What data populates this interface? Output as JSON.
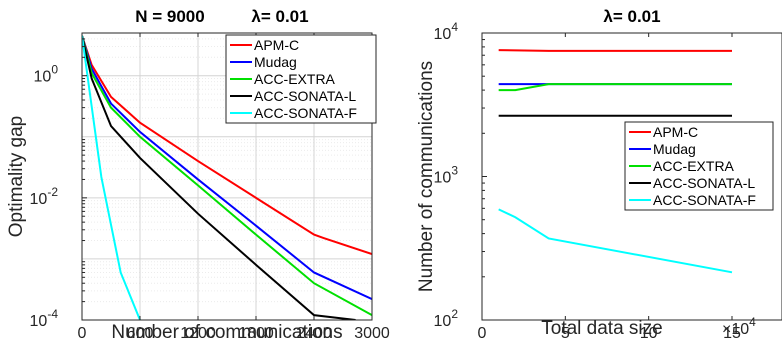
{
  "chart_data": [
    {
      "type": "line",
      "title": "N = 9000",
      "title_param": "λ= 0.01",
      "xlabel": "Number of communications",
      "ylabel": "Optimality gap",
      "xlim": [
        0,
        3000
      ],
      "ylim": [
        0.0001,
        5
      ],
      "yscale": "log",
      "xticks": [
        "0",
        "600",
        "1200",
        "1800",
        "2400",
        "3000"
      ],
      "yticks": [
        {
          "base": "10",
          "exp": "-4"
        },
        {
          "base": "10",
          "exp": "-2"
        },
        {
          "base": "10",
          "exp": "0"
        }
      ],
      "grid": true,
      "legend_position": "top-right",
      "series": [
        {
          "name": "APM-C",
          "color": "#ff0000",
          "x": [
            0,
            100,
            300,
            600,
            1200,
            1800,
            2400,
            2500,
            3000
          ],
          "y": [
            4.5,
            1.5,
            0.45,
            0.17,
            0.04,
            0.01,
            0.0025,
            0.0022,
            0.0012
          ]
        },
        {
          "name": "Mudag",
          "color": "#0000ff",
          "x": [
            0,
            100,
            300,
            600,
            1200,
            1800,
            2400,
            3000
          ],
          "y": [
            4.5,
            1.3,
            0.35,
            0.12,
            0.02,
            0.0035,
            0.0006,
            0.00022
          ]
        },
        {
          "name": "ACC-EXTRA",
          "color": "#00e000",
          "x": [
            0,
            100,
            300,
            600,
            1200,
            1800,
            2400,
            3000
          ],
          "y": [
            4.5,
            1.1,
            0.3,
            0.1,
            0.016,
            0.0025,
            0.0004,
            0.00012
          ]
        },
        {
          "name": "ACC-SONATA-L",
          "color": "#000000",
          "x": [
            0,
            100,
            300,
            600,
            1200,
            1800,
            2400,
            2830
          ],
          "y": [
            4.5,
            0.9,
            0.15,
            0.045,
            0.0055,
            0.0008,
            0.00012,
            0.0001
          ]
        },
        {
          "name": "ACC-SONATA-F",
          "color": "#00ffff",
          "x": [
            0,
            200,
            400,
            600
          ],
          "y": [
            4.5,
            0.022,
            0.0006,
            0.0001
          ]
        }
      ]
    },
    {
      "type": "line",
      "title": "λ= 0.01",
      "xlabel": "Total data size",
      "xlabel_multiplier": {
        "base": "×10",
        "exp": "4"
      },
      "ylabel": "Number of communications",
      "xlim": [
        0,
        18
      ],
      "ylim": [
        100,
        10000
      ],
      "yscale": "log",
      "xticks": [
        "0",
        "5",
        "10",
        "15"
      ],
      "yticks": [
        {
          "base": "10",
          "exp": "2"
        },
        {
          "base": "10",
          "exp": "3"
        },
        {
          "base": "10",
          "exp": "4"
        }
      ],
      "grid": false,
      "legend_position": "center-right",
      "series": [
        {
          "name": "APM-C",
          "color": "#ff0000",
          "x": [
            1,
            4,
            15
          ],
          "y": [
            7600,
            7500,
            7500
          ]
        },
        {
          "name": "Mudag",
          "color": "#0000ff",
          "x": [
            1,
            4,
            15
          ],
          "y": [
            4400,
            4400,
            4400
          ]
        },
        {
          "name": "ACC-EXTRA",
          "color": "#00e000",
          "x": [
            1,
            2,
            4,
            15
          ],
          "y": [
            4000,
            4000,
            4400,
            4400
          ]
        },
        {
          "name": "ACC-SONATA-L",
          "color": "#000000",
          "x": [
            1,
            4,
            15
          ],
          "y": [
            2650,
            2650,
            2650
          ]
        },
        {
          "name": "ACC-SONATA-F",
          "color": "#00ffff",
          "x": [
            1,
            2,
            4,
            15
          ],
          "y": [
            590,
            520,
            370,
            215
          ]
        }
      ]
    }
  ]
}
